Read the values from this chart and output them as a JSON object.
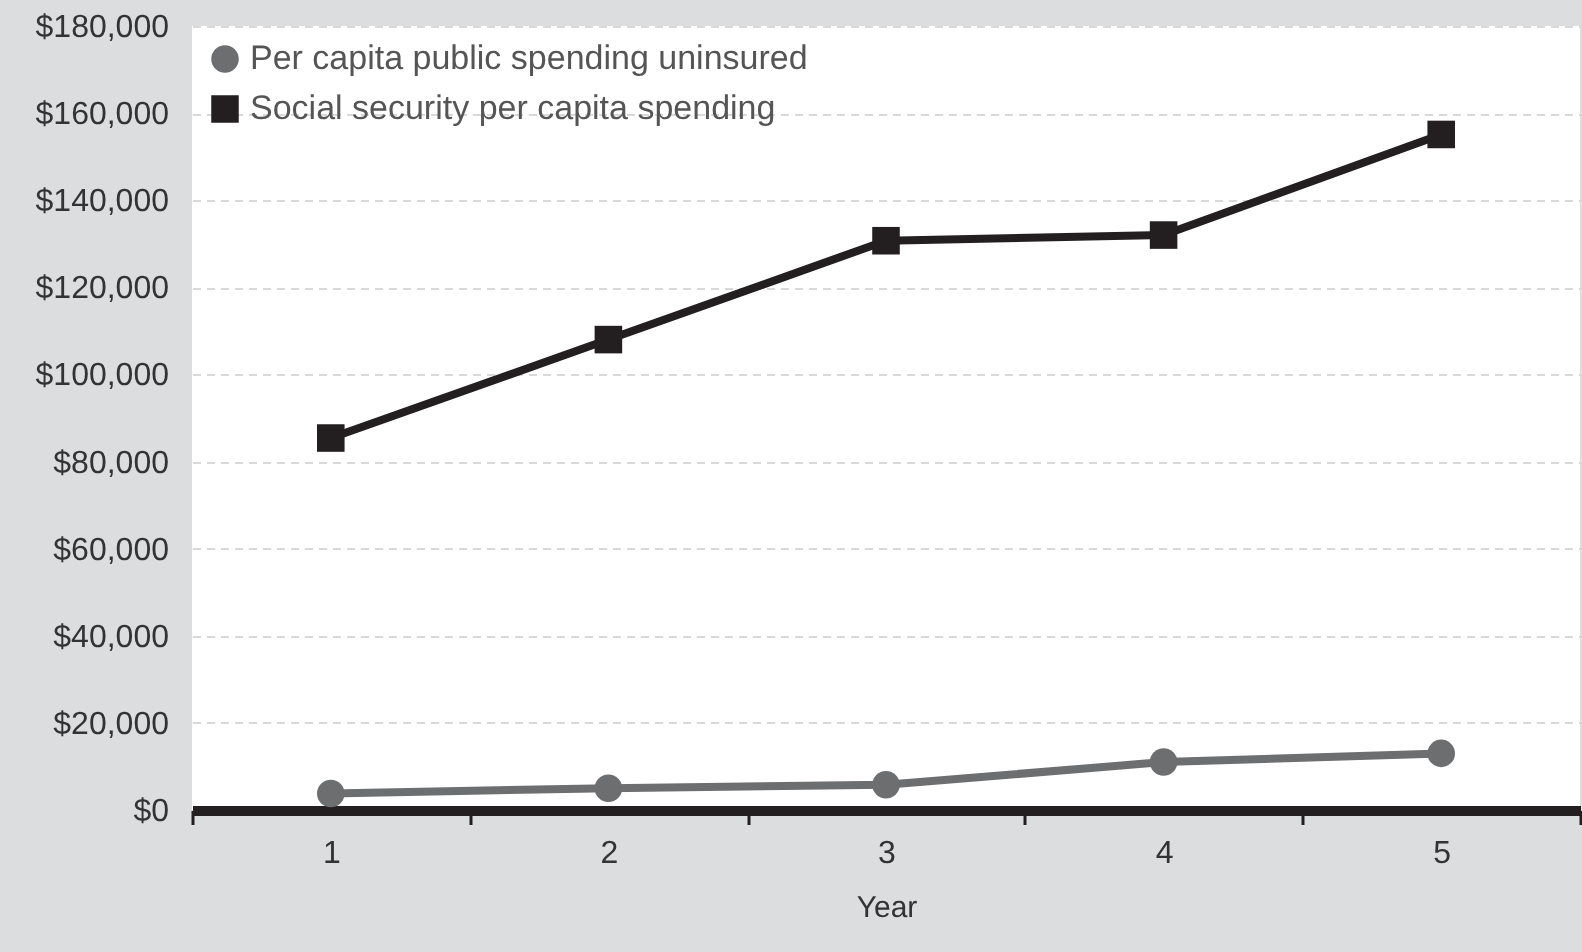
{
  "chart_data": {
    "type": "line",
    "xlabel": "Year",
    "categories": [
      "1",
      "2",
      "3",
      "4",
      "5"
    ],
    "series": [
      {
        "name": "Per capita public spending uninsured",
        "color": "#6d6e70",
        "marker": "circle",
        "values": [
          3800,
          5000,
          5800,
          11000,
          13000
        ]
      },
      {
        "name": "Social security per capita spending",
        "color": "#231f20",
        "marker": "square",
        "values": [
          85400,
          108000,
          130700,
          132000,
          155100
        ]
      }
    ],
    "ylim": [
      0,
      180000
    ],
    "yticks": [
      {
        "value": 0,
        "label": "$0"
      },
      {
        "value": 20000,
        "label": "$20,000"
      },
      {
        "value": 40000,
        "label": "$40,000"
      },
      {
        "value": 60000,
        "label": "$60,000"
      },
      {
        "value": 80000,
        "label": "$80,000"
      },
      {
        "value": 100000,
        "label": "$100,000"
      },
      {
        "value": 120000,
        "label": "$120,000"
      },
      {
        "value": 140000,
        "label": "$140,000"
      },
      {
        "value": 160000,
        "label": "$160,000"
      },
      {
        "value": 180000,
        "label": "$180,000"
      }
    ],
    "grid": "y",
    "legend": "top left",
    "line_style": "solid"
  }
}
